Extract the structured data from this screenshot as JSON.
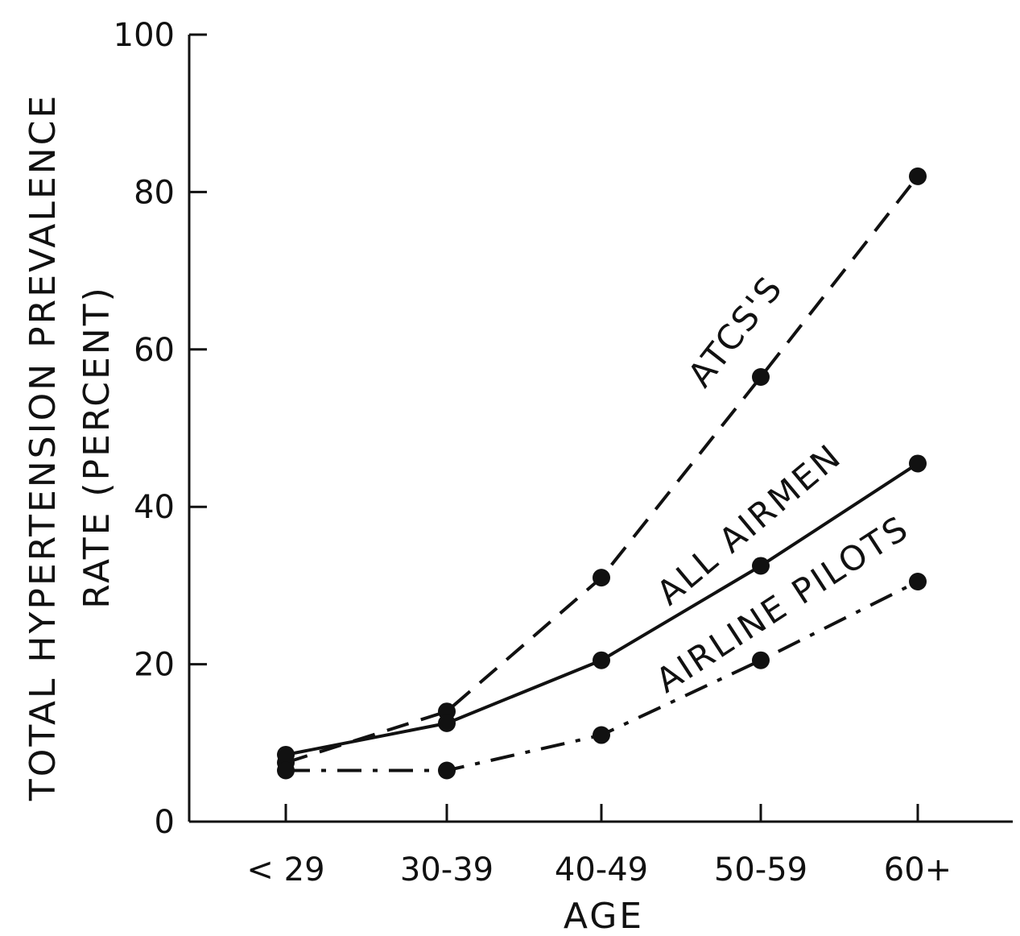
{
  "chart_data": {
    "type": "line",
    "categories": [
      "< 29",
      "30-39",
      "40-49",
      "50-59",
      "60+"
    ],
    "xlabel": "AGE",
    "ylabel_line1": "TOTAL HYPERTENSION PREVALENCE",
    "ylabel_line2": "RATE (PERCENT)",
    "ylim": [
      0,
      100
    ],
    "yticks": [
      0,
      20,
      40,
      60,
      80,
      100
    ],
    "grid": false,
    "series": [
      {
        "name": "ATCS'S",
        "style": "dashed",
        "values": [
          7.5,
          14,
          31,
          56.5,
          82
        ]
      },
      {
        "name": "ALL AIRMEN",
        "style": "solid",
        "values": [
          8.5,
          12.5,
          20.5,
          32.5,
          45.5
        ]
      },
      {
        "name": "AIRLINE PILOTS",
        "style": "dash-dot",
        "values": [
          6.5,
          6.5,
          11,
          20.5,
          30.5
        ]
      }
    ],
    "colors": {
      "ink": "#111111",
      "background": "#ffffff"
    }
  }
}
